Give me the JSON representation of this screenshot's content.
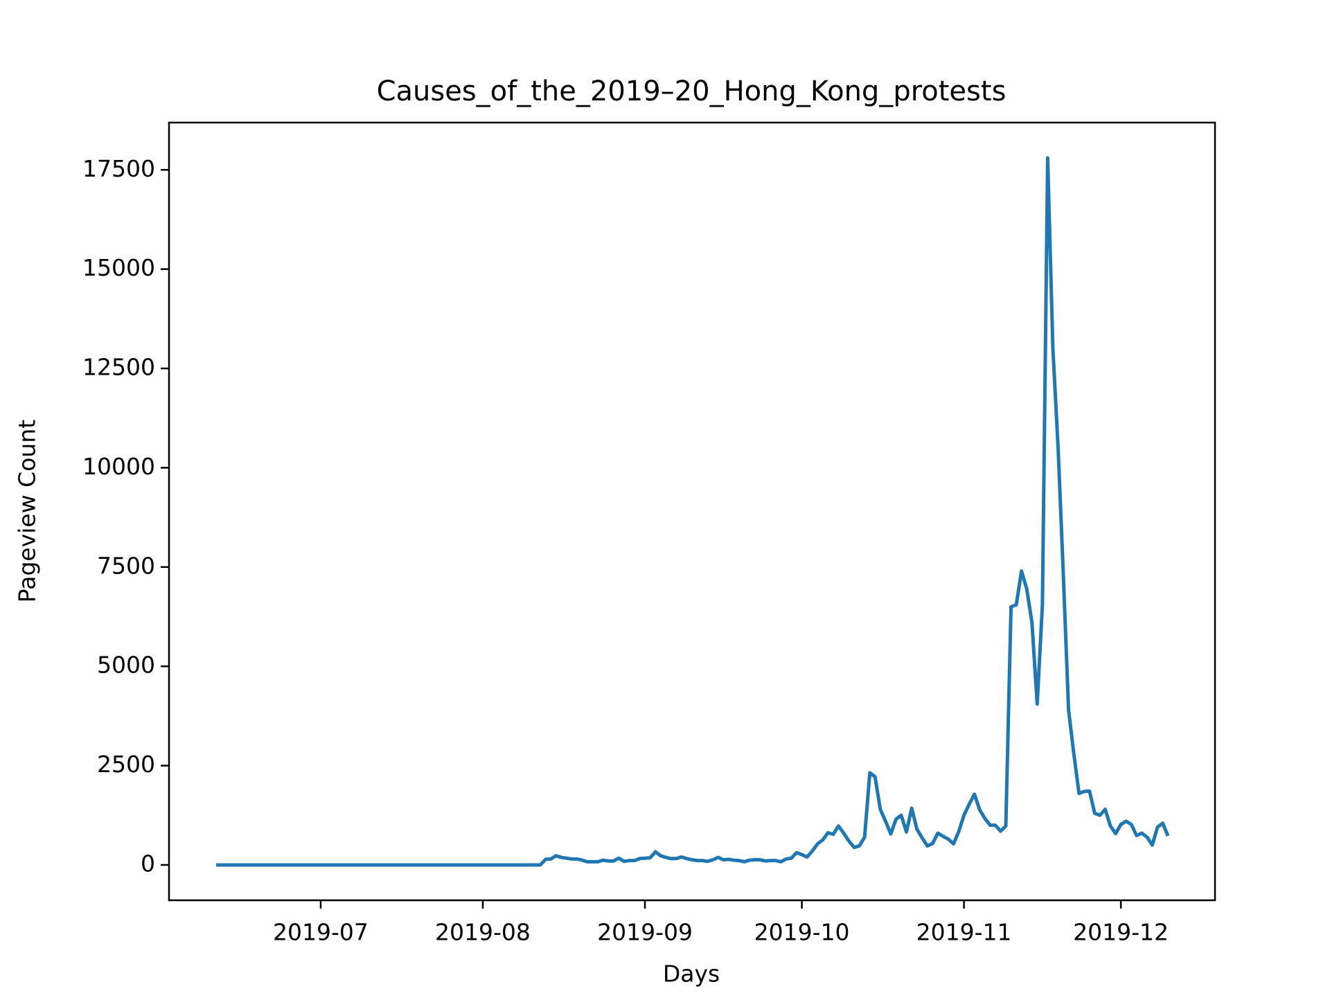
{
  "chart_data": {
    "type": "line",
    "title": "Causes_of_the_2019–20_Hong_Kong_protests",
    "x_label": "Days",
    "y_label": "Pageview Count",
    "xlim": [
      "2019-06-02",
      "2019-12-19"
    ],
    "ylim": [
      -890,
      18690
    ],
    "xticks": [
      {
        "value": "2019-07-01",
        "label": "2019-07"
      },
      {
        "value": "2019-08-01",
        "label": "2019-08"
      },
      {
        "value": "2019-09-01",
        "label": "2019-09"
      },
      {
        "value": "2019-10-01",
        "label": "2019-10"
      },
      {
        "value": "2019-11-01",
        "label": "2019-11"
      },
      {
        "value": "2019-12-01",
        "label": "2019-12"
      }
    ],
    "yticks": [
      0,
      2500,
      5000,
      7500,
      10000,
      12500,
      15000,
      17500
    ],
    "x": [
      "2019-06-11",
      "2019-06-12",
      "2019-06-13",
      "2019-06-14",
      "2019-06-15",
      "2019-06-16",
      "2019-06-17",
      "2019-06-18",
      "2019-06-19",
      "2019-06-20",
      "2019-06-21",
      "2019-06-22",
      "2019-06-23",
      "2019-06-24",
      "2019-06-25",
      "2019-06-26",
      "2019-06-27",
      "2019-06-28",
      "2019-06-29",
      "2019-06-30",
      "2019-07-01",
      "2019-07-02",
      "2019-07-03",
      "2019-07-04",
      "2019-07-05",
      "2019-07-06",
      "2019-07-07",
      "2019-07-08",
      "2019-07-09",
      "2019-07-10",
      "2019-07-11",
      "2019-07-12",
      "2019-07-13",
      "2019-07-14",
      "2019-07-15",
      "2019-07-16",
      "2019-07-17",
      "2019-07-18",
      "2019-07-19",
      "2019-07-20",
      "2019-07-21",
      "2019-07-22",
      "2019-07-23",
      "2019-07-24",
      "2019-07-25",
      "2019-07-26",
      "2019-07-27",
      "2019-07-28",
      "2019-07-29",
      "2019-07-30",
      "2019-07-31",
      "2019-08-01",
      "2019-08-02",
      "2019-08-03",
      "2019-08-04",
      "2019-08-05",
      "2019-08-06",
      "2019-08-07",
      "2019-08-08",
      "2019-08-09",
      "2019-08-10",
      "2019-08-11",
      "2019-08-12",
      "2019-08-13",
      "2019-08-14",
      "2019-08-15",
      "2019-08-16",
      "2019-08-17",
      "2019-08-18",
      "2019-08-19",
      "2019-08-20",
      "2019-08-21",
      "2019-08-22",
      "2019-08-23",
      "2019-08-24",
      "2019-08-25",
      "2019-08-26",
      "2019-08-27",
      "2019-08-28",
      "2019-08-29",
      "2019-08-30",
      "2019-08-31",
      "2019-09-01",
      "2019-09-02",
      "2019-09-03",
      "2019-09-04",
      "2019-09-05",
      "2019-09-06",
      "2019-09-07",
      "2019-09-08",
      "2019-09-09",
      "2019-09-10",
      "2019-09-11",
      "2019-09-12",
      "2019-09-13",
      "2019-09-14",
      "2019-09-15",
      "2019-09-16",
      "2019-09-17",
      "2019-09-18",
      "2019-09-19",
      "2019-09-20",
      "2019-09-21",
      "2019-09-22",
      "2019-09-23",
      "2019-09-24",
      "2019-09-25",
      "2019-09-26",
      "2019-09-27",
      "2019-09-28",
      "2019-09-29",
      "2019-09-30",
      "2019-10-01",
      "2019-10-02",
      "2019-10-03",
      "2019-10-04",
      "2019-10-05",
      "2019-10-06",
      "2019-10-07",
      "2019-10-08",
      "2019-10-09",
      "2019-10-10",
      "2019-10-11",
      "2019-10-12",
      "2019-10-13",
      "2019-10-14",
      "2019-10-15",
      "2019-10-16",
      "2019-10-17",
      "2019-10-18",
      "2019-10-19",
      "2019-10-20",
      "2019-10-21",
      "2019-10-22",
      "2019-10-23",
      "2019-10-24",
      "2019-10-25",
      "2019-10-26",
      "2019-10-27",
      "2019-10-28",
      "2019-10-29",
      "2019-10-30",
      "2019-10-31",
      "2019-11-01",
      "2019-11-02",
      "2019-11-03",
      "2019-11-04",
      "2019-11-05",
      "2019-11-06",
      "2019-11-07",
      "2019-11-08",
      "2019-11-09",
      "2019-11-10",
      "2019-11-11",
      "2019-11-12",
      "2019-11-13",
      "2019-11-14",
      "2019-11-15",
      "2019-11-16",
      "2019-11-17",
      "2019-11-18",
      "2019-11-19",
      "2019-11-20",
      "2019-11-21",
      "2019-11-22",
      "2019-11-23",
      "2019-11-24",
      "2019-11-25",
      "2019-11-26",
      "2019-11-27",
      "2019-11-28",
      "2019-11-29",
      "2019-11-30",
      "2019-12-01",
      "2019-12-02",
      "2019-12-03",
      "2019-12-04",
      "2019-12-05",
      "2019-12-06",
      "2019-12-07",
      "2019-12-08",
      "2019-12-09",
      "2019-12-10"
    ],
    "series": [
      {
        "color": "#1f77b4",
        "values": [
          0,
          0,
          0,
          0,
          0,
          0,
          0,
          0,
          0,
          0,
          0,
          0,
          0,
          0,
          0,
          0,
          0,
          0,
          0,
          0,
          0,
          0,
          0,
          0,
          0,
          0,
          0,
          0,
          0,
          0,
          0,
          0,
          0,
          0,
          0,
          0,
          0,
          0,
          0,
          0,
          0,
          0,
          0,
          0,
          0,
          0,
          0,
          0,
          0,
          0,
          0,
          0,
          0,
          0,
          0,
          0,
          0,
          0,
          0,
          0,
          0,
          0,
          0,
          140,
          150,
          230,
          190,
          170,
          150,
          150,
          120,
          80,
          80,
          80,
          120,
          100,
          100,
          170,
          90,
          110,
          110,
          160,
          170,
          180,
          330,
          230,
          190,
          160,
          160,
          200,
          160,
          130,
          110,
          110,
          90,
          130,
          190,
          130,
          140,
          120,
          110,
          80,
          120,
          130,
          130,
          100,
          110,
          110,
          80,
          150,
          170,
          310,
          260,
          200,
          350,
          530,
          630,
          810,
          770,
          980,
          800,
          600,
          440,
          480,
          700,
          2320,
          2220,
          1400,
          1100,
          780,
          1150,
          1250,
          830,
          1430,
          900,
          680,
          480,
          540,
          800,
          720,
          650,
          530,
          840,
          1250,
          1530,
          1780,
          1390,
          1170,
          1000,
          1000,
          850,
          980,
          6500,
          6550,
          7400,
          6950,
          6100,
          4050,
          6550,
          17800,
          13000,
          10500,
          7300,
          3900,
          2800,
          1800,
          1850,
          1860,
          1300,
          1250,
          1400,
          980,
          790,
          1020,
          1100,
          1020,
          740,
          800,
          700,
          500,
          950,
          1050,
          730
        ]
      }
    ]
  }
}
